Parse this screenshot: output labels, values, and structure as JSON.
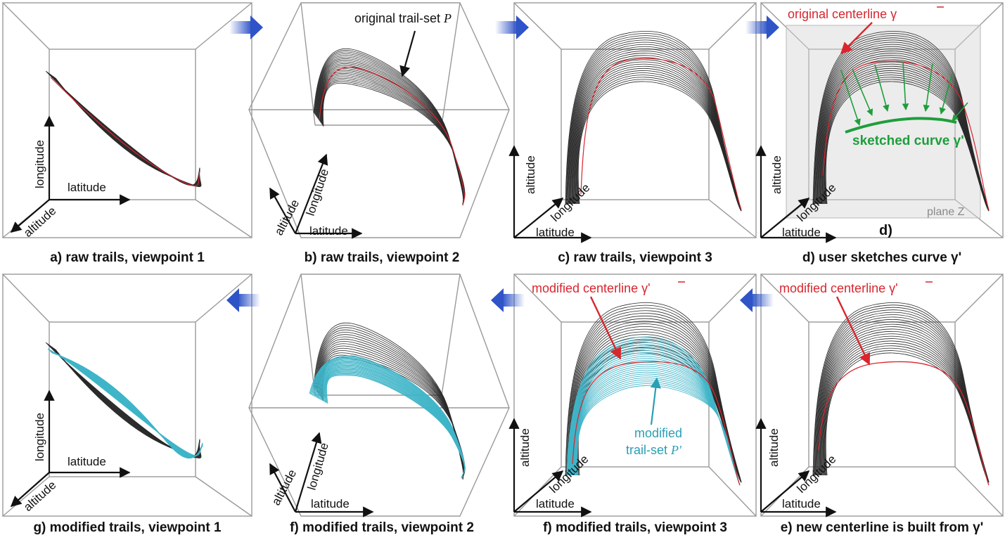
{
  "panels": [
    {
      "caption": "a) raw trails, viewpoint 1"
    },
    {
      "caption": "b) raw trails, viewpoint 2"
    },
    {
      "caption": "c) raw trails, viewpoint 3"
    },
    {
      "caption": "d) user sketches curve γ'"
    },
    {
      "caption": "g) modified trails, viewpoint 1"
    },
    {
      "caption": "f) modified trails, viewpoint 2"
    },
    {
      "caption": "f) modified trails, viewpoint 3"
    },
    {
      "caption": "e) new centerline is built from γ'"
    }
  ],
  "axes": {
    "latitude": "latitude",
    "longitude": "longitude",
    "altitude": "altitude"
  },
  "annotations": {
    "original_trail_set": "original trail-set ",
    "original_trail_set_symbol": "P",
    "original_centerline": "original centerline γ",
    "sketched_curve": "sketched curve γ'",
    "plane": "plane Z",
    "d_label": "d)",
    "modified_centerline": "modified centerline γ'",
    "modified_centerline_e": "modified centerline γ'",
    "modified_trail_set_1": "modified",
    "modified_trail_set_2": "trail-set ",
    "modified_trail_set_symbol": "P'"
  },
  "colors": {
    "trail": "#2a2a2a",
    "centerline": "#d8262e",
    "sketch": "#1e9e3c",
    "modified": "#3fb5c8",
    "arrow_flow": "#2f54c8",
    "box": "#9a9a9a"
  }
}
